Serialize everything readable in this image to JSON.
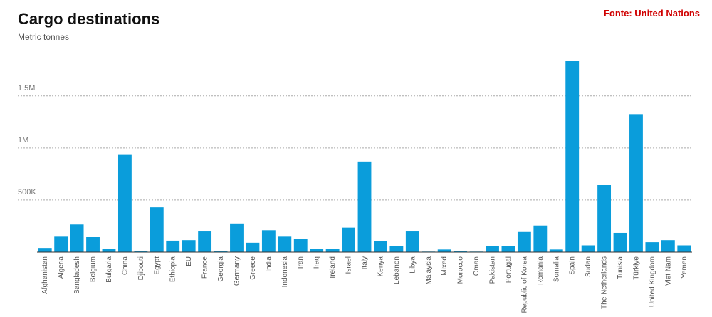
{
  "chart_data": {
    "type": "bar",
    "title": "Cargo destinations",
    "subtitle": "Metric tonnes",
    "source": "Fonte: United Nations",
    "categories": [
      "Afghanistan",
      "Algeria",
      "Bangladesh",
      "Belgium",
      "Bulgaria",
      "China",
      "Djibouti",
      "Egypt",
      "Ethiopia",
      "EU",
      "France",
      "Georgia",
      "Germany",
      "Greece",
      "India",
      "Indonesia",
      "Iran",
      "Iraq",
      "Ireland",
      "Israel",
      "Italy",
      "Kenya",
      "Lebanon",
      "Libya",
      "Malaysia",
      "Mixed",
      "Morocco",
      "Oman",
      "Pakistan",
      "Portugal",
      "Republic of Korea",
      "Romania",
      "Somalia",
      "Spain",
      "Sudan",
      "The Netherlands",
      "Tunisia",
      "Türkiye",
      "United Kingdom",
      "Viet Nam",
      "Yemen"
    ],
    "values": [
      40000,
      155000,
      265000,
      150000,
      33000,
      940000,
      10000,
      430000,
      110000,
      115000,
      205000,
      8000,
      275000,
      90000,
      210000,
      155000,
      125000,
      33000,
      30000,
      235000,
      870000,
      105000,
      60000,
      205000,
      5000,
      25000,
      12000,
      5000,
      60000,
      55000,
      200000,
      255000,
      25000,
      1835000,
      65000,
      645000,
      185000,
      1325000,
      95000,
      115000,
      65000
    ],
    "color": "#0a9ddb",
    "ylim": [
      0,
      1950000
    ],
    "yticks": [
      {
        "value": 500000,
        "label": "500K"
      },
      {
        "value": 1000000,
        "label": "1M"
      },
      {
        "value": 1500000,
        "label": "1.5M"
      }
    ],
    "grid": true
  }
}
